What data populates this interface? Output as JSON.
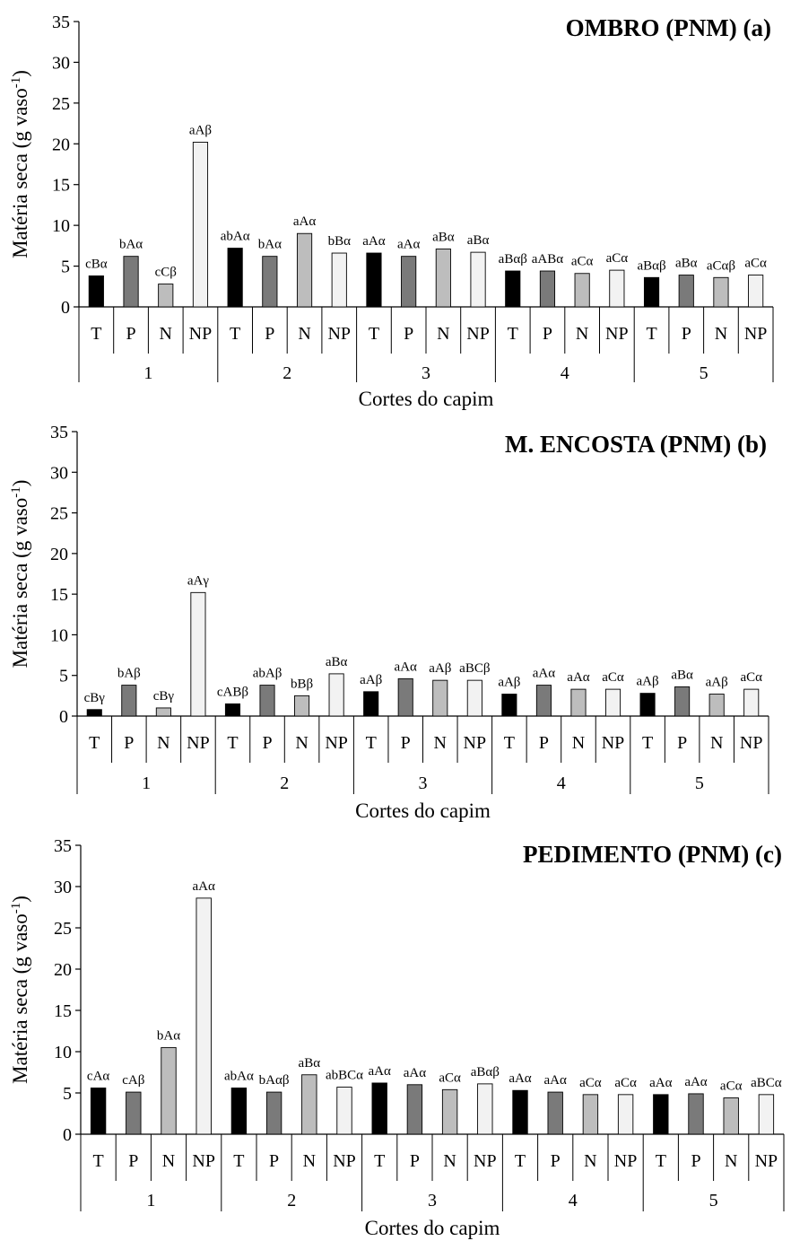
{
  "colors": {
    "T": "#000000",
    "P": "#7a7a7a",
    "N": "#bdbdbd",
    "NP": "#f2f2f2",
    "axis": "#000000"
  },
  "chart_data": [
    {
      "type": "bar",
      "title": "OMBRO (PNM) (a)",
      "ylabel": "Matéria seca (g vaso-1)",
      "xlabel": "Cortes do capim",
      "ylim": [
        0,
        35
      ],
      "yticks": [
        "0",
        "5",
        "10",
        "15",
        "20",
        "25",
        "30",
        "35"
      ],
      "groups": [
        "1",
        "2",
        "3",
        "4",
        "5"
      ],
      "treatments": [
        "T",
        "P",
        "N",
        "NP"
      ],
      "values": [
        [
          3.8,
          6.2,
          2.8,
          20.2
        ],
        [
          7.2,
          6.2,
          9.0,
          6.6
        ],
        [
          6.6,
          6.2,
          7.1,
          6.7
        ],
        [
          4.4,
          4.4,
          4.1,
          4.5
        ],
        [
          3.6,
          3.9,
          3.6,
          3.9
        ]
      ],
      "labels": [
        [
          "cBα",
          "bAα",
          "cCβ",
          "aAβ"
        ],
        [
          "abAα",
          "bAα",
          "aAα",
          "bBα"
        ],
        [
          "aAα",
          "aAα",
          "aBα",
          "aBα"
        ],
        [
          "aBαβ",
          "aABα",
          "aCα",
          "aCα"
        ],
        [
          "aBαβ",
          "aBα",
          "aCαβ",
          "aCα"
        ]
      ],
      "grid": false
    },
    {
      "type": "bar",
      "title": "M. ENCOSTA (PNM) (b)",
      "ylabel": "Matéria seca (g vaso-1)",
      "xlabel": "Cortes do capim",
      "ylim": [
        0,
        35
      ],
      "yticks": [
        "0",
        "5",
        "10",
        "15",
        "20",
        "25",
        "30",
        "35"
      ],
      "groups": [
        "1",
        "2",
        "3",
        "4",
        "5"
      ],
      "treatments": [
        "T",
        "P",
        "N",
        "NP"
      ],
      "values": [
        [
          0.8,
          3.8,
          1.0,
          15.2
        ],
        [
          1.5,
          3.8,
          2.5,
          5.2
        ],
        [
          3.0,
          4.6,
          4.4,
          4.4
        ],
        [
          2.7,
          3.8,
          3.3,
          3.3
        ],
        [
          2.8,
          3.6,
          2.7,
          3.3
        ]
      ],
      "labels": [
        [
          "cBγ",
          "bAβ",
          "cBγ",
          "aAγ"
        ],
        [
          "cABβ",
          "abAβ",
          "bBβ",
          "aBα"
        ],
        [
          "aAβ",
          "aAα",
          "aAβ",
          "aBCβ"
        ],
        [
          "aAβ",
          "aAα",
          "aAα",
          "aCα"
        ],
        [
          "aAβ",
          "aBα",
          "aAβ",
          "aCα"
        ]
      ],
      "grid": false
    },
    {
      "type": "bar",
      "title": "PEDIMENTO (PNM) (c)",
      "ylabel": "Matéria seca (g vaso-1)",
      "xlabel": "Cortes do capim",
      "ylim": [
        0,
        35
      ],
      "yticks": [
        "0",
        "5",
        "10",
        "15",
        "20",
        "25",
        "30",
        "35"
      ],
      "groups": [
        "1",
        "2",
        "3",
        "4",
        "5"
      ],
      "treatments": [
        "T",
        "P",
        "N",
        "NP"
      ],
      "values": [
        [
          5.6,
          5.1,
          10.5,
          28.6
        ],
        [
          5.6,
          5.1,
          7.2,
          5.7
        ],
        [
          6.2,
          6.0,
          5.4,
          6.1
        ],
        [
          5.3,
          5.1,
          4.8,
          4.8
        ],
        [
          4.8,
          4.9,
          4.4,
          4.8
        ]
      ],
      "labels": [
        [
          "cAα",
          "cAβ",
          "bAα",
          "aAα"
        ],
        [
          "abAα",
          "bAαβ",
          "aBα",
          "abBCα"
        ],
        [
          "aAα",
          "aAα",
          "aCα",
          "aBαβ"
        ],
        [
          "aAα",
          "aAα",
          "aCα",
          "aCα"
        ],
        [
          "aAα",
          "aAα",
          "aCα",
          "aBCα"
        ]
      ],
      "grid": false
    }
  ]
}
